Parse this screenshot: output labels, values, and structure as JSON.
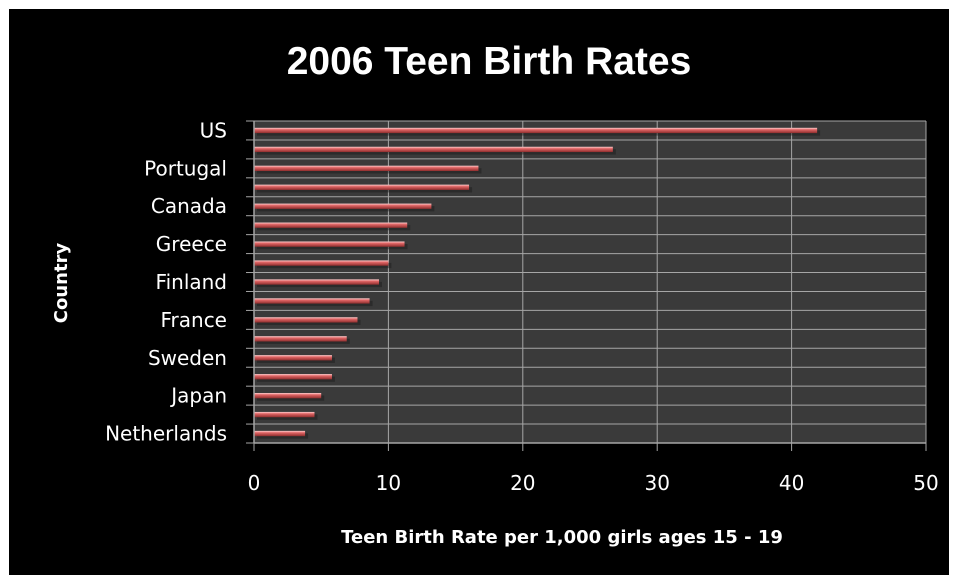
{
  "chart_data": {
    "type": "bar",
    "orientation": "horizontal",
    "title": "2006 Teen Birth Rates",
    "xlabel": "Teen Birth Rate per 1,000 girls ages 15 - 19",
    "ylabel": "Country",
    "xlim": [
      0,
      50
    ],
    "x_ticks": [
      "0",
      "10",
      "20",
      "30",
      "40",
      "50"
    ],
    "grid": true,
    "categories": [
      "US",
      "",
      "Portugal",
      "",
      "Canada",
      "",
      "Greece",
      "",
      "Finland",
      "",
      "France",
      "",
      "Sweden",
      "",
      "Japan",
      "",
      "Netherlands"
    ],
    "values": [
      41.9,
      26.7,
      16.7,
      16.0,
      13.2,
      11.4,
      11.2,
      10.0,
      9.3,
      8.6,
      7.7,
      6.9,
      5.8,
      5.8,
      5.0,
      4.5,
      3.8
    ],
    "colors": {
      "background": "#000000",
      "plot_area": "#3a3a3a",
      "gridlines": "#a6a6a6",
      "bar": "#e06666",
      "bar_highlight": "#ffd0d0",
      "bar_shadow": "#8e2d2d",
      "text": "#ffffff"
    }
  }
}
